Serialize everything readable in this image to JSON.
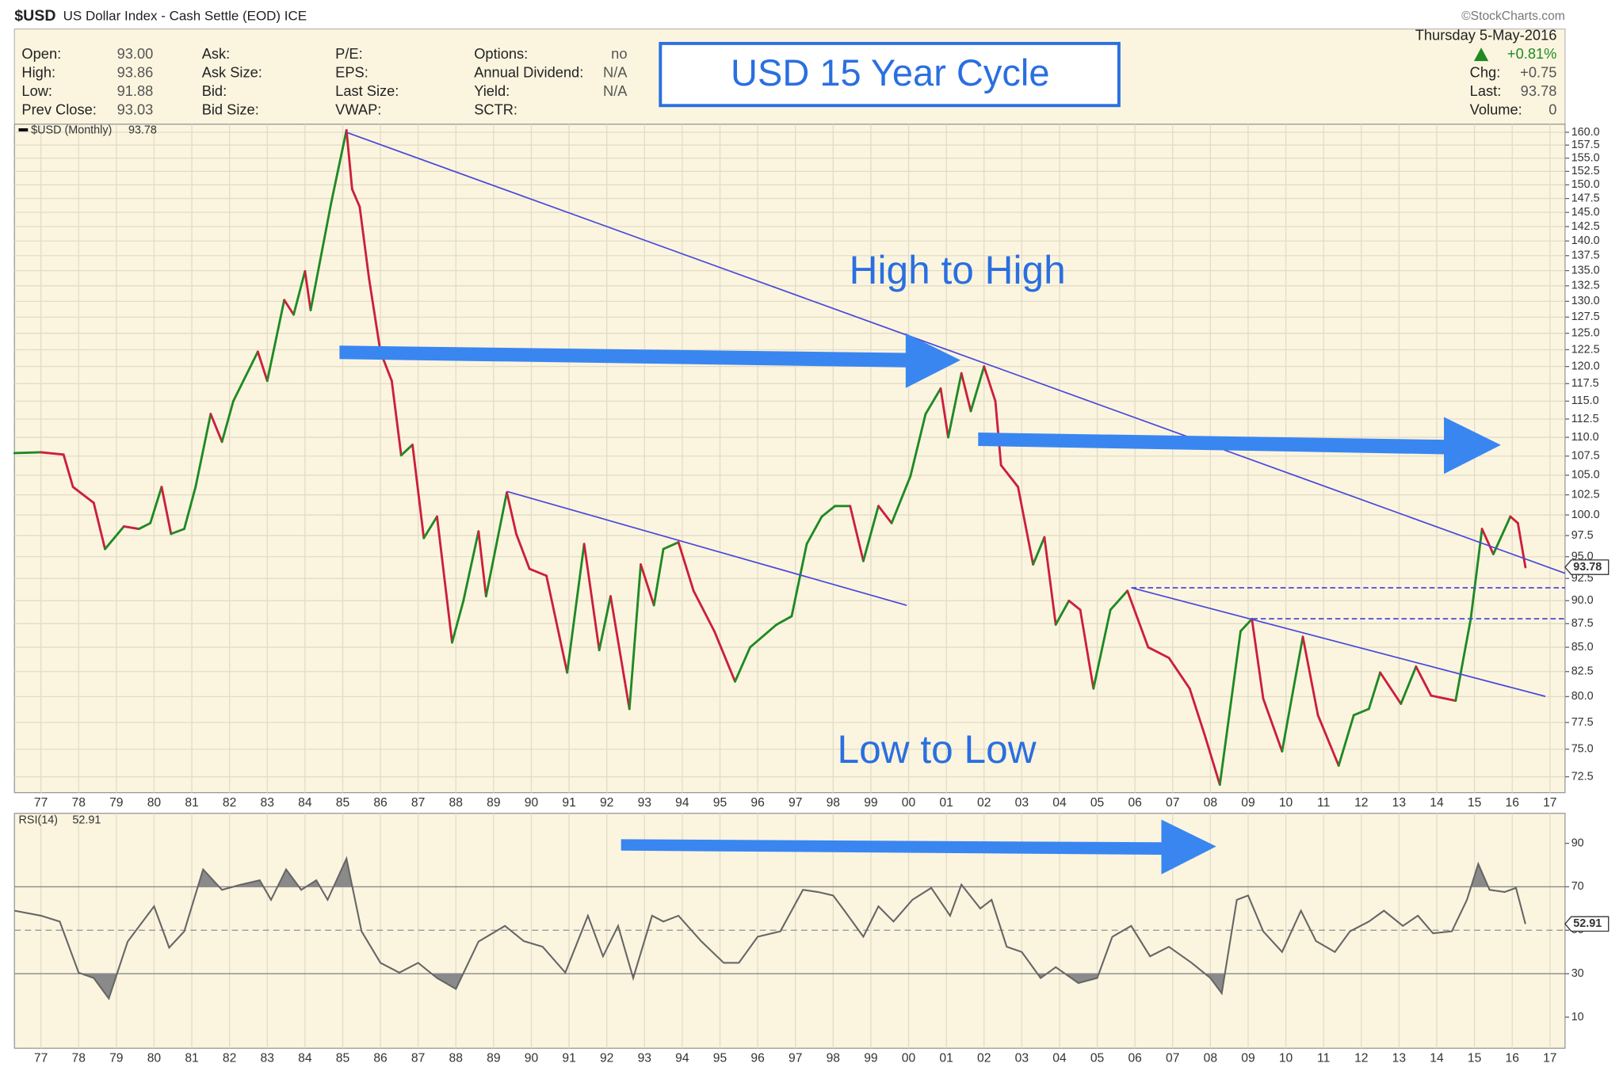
{
  "header": {
    "symbol": "$USD",
    "name": "US Dollar Index - Cash Settle (EOD) ICE",
    "credit": "©StockCharts.com",
    "quote": [
      [
        [
          "Open:",
          "93.00"
        ],
        [
          "High:",
          "93.86"
        ],
        [
          "Low:",
          "91.88"
        ],
        [
          "Prev Close:",
          "93.03"
        ]
      ],
      [
        [
          "Ask:"
        ],
        [
          "Ask Size:"
        ],
        [
          "Bid:"
        ],
        [
          "Bid Size:"
        ]
      ],
      [
        [
          "P/E:"
        ],
        [
          "EPS:"
        ],
        [
          "Last Size:"
        ],
        [
          "VWAP:"
        ]
      ],
      [
        [
          "Options:",
          "no"
        ],
        [
          "Annual Dividend:",
          "N/A"
        ],
        [
          "Yield:",
          "N/A"
        ],
        [
          "SCTR:"
        ]
      ]
    ],
    "date": "Thursday  5-May-2016",
    "change_pct": "+0.81%",
    "summary": [
      [
        "Chg:",
        "+0.75"
      ],
      [
        "Last:",
        "93.78"
      ],
      [
        "Volume:",
        "0"
      ]
    ]
  },
  "annotations": {
    "title": "USD 15 Year Cycle",
    "high": "High to High",
    "low": "Low to Low"
  },
  "chart_data": [
    {
      "type": "line",
      "log_scale": true,
      "grid": true,
      "up_color": "#1f8a23",
      "down_color": "#cc1f3c",
      "xlim": [
        1976.3,
        2017.4
      ],
      "ylim": [
        71.1,
        161.6
      ],
      "xticks": [
        {
          "value": 1977,
          "label": "77"
        },
        {
          "value": 1978,
          "label": "78"
        },
        {
          "value": 1979,
          "label": "79"
        },
        {
          "value": 1980,
          "label": "80"
        },
        {
          "value": 1981,
          "label": "81"
        },
        {
          "value": 1982,
          "label": "82"
        },
        {
          "value": 1983,
          "label": "83"
        },
        {
          "value": 1984,
          "label": "84"
        },
        {
          "value": 1985,
          "label": "85"
        },
        {
          "value": 1986,
          "label": "86"
        },
        {
          "value": 1987,
          "label": "87"
        },
        {
          "value": 1988,
          "label": "88"
        },
        {
          "value": 1989,
          "label": "89"
        },
        {
          "value": 1990,
          "label": "90"
        },
        {
          "value": 1991,
          "label": "91"
        },
        {
          "value": 1992,
          "label": "92"
        },
        {
          "value": 1993,
          "label": "93"
        },
        {
          "value": 1994,
          "label": "94"
        },
        {
          "value": 1995,
          "label": "95"
        },
        {
          "value": 1996,
          "label": "96"
        },
        {
          "value": 1997,
          "label": "97"
        },
        {
          "value": 1998,
          "label": "98"
        },
        {
          "value": 1999,
          "label": "99"
        },
        {
          "value": 2000,
          "label": "00"
        },
        {
          "value": 2001,
          "label": "01"
        },
        {
          "value": 2002,
          "label": "02"
        },
        {
          "value": 2003,
          "label": "03"
        },
        {
          "value": 2004,
          "label": "04"
        },
        {
          "value": 2005,
          "label": "05"
        },
        {
          "value": 2006,
          "label": "06"
        },
        {
          "value": 2007,
          "label": "07"
        },
        {
          "value": 2008,
          "label": "08"
        },
        {
          "value": 2009,
          "label": "09"
        },
        {
          "value": 2010,
          "label": "10"
        },
        {
          "value": 2011,
          "label": "11"
        },
        {
          "value": 2012,
          "label": "12"
        },
        {
          "value": 2013,
          "label": "13"
        },
        {
          "value": 2014,
          "label": "14"
        },
        {
          "value": 2015,
          "label": "15"
        },
        {
          "value": 2016,
          "label": "16"
        },
        {
          "value": 2017,
          "label": "17"
        }
      ],
      "yticks": [
        72.5,
        {
          "value": 75,
          "label": "75.0"
        },
        77.5,
        {
          "value": 80,
          "label": "80.0"
        },
        82.5,
        {
          "value": 85,
          "label": "85.0"
        },
        87.5,
        {
          "value": 90,
          "label": "90.0"
        },
        92.5,
        {
          "value": 95,
          "label": "95.0"
        },
        97.5,
        {
          "value": 100,
          "label": "100.0"
        },
        102.5,
        {
          "value": 105,
          "label": "105.0"
        },
        107.5,
        {
          "value": 110,
          "label": "110.0"
        },
        112.5,
        {
          "value": 115,
          "label": "115.0"
        },
        117.5,
        {
          "value": 120,
          "label": "120.0"
        },
        122.5,
        {
          "value": 125,
          "label": "125.0"
        },
        127.5,
        {
          "value": 130,
          "label": "130.0"
        },
        132.5,
        {
          "value": 135,
          "label": "135.0"
        },
        137.5,
        {
          "value": 140,
          "label": "140.0"
        },
        142.5,
        {
          "value": 145,
          "label": "145.0"
        },
        147.5,
        {
          "value": 150,
          "label": "150.0"
        },
        152.5,
        {
          "value": 155,
          "label": "155.0"
        },
        157.5,
        {
          "value": 160,
          "label": "160.0"
        }
      ],
      "x": [
        1976.3,
        1977.0,
        1977.6,
        1977.85,
        1978.4,
        1978.7,
        1979.2,
        1979.6,
        1979.9,
        1980.2,
        1980.45,
        1980.8,
        1981.1,
        1981.5,
        1981.8,
        1982.1,
        1982.75,
        1983.0,
        1983.45,
        1983.7,
        1984.0,
        1984.15,
        1984.7,
        1985.1,
        1985.25,
        1985.45,
        1985.7,
        1986.0,
        1986.3,
        1986.55,
        1986.85,
        1987.15,
        1987.5,
        1987.9,
        1988.2,
        1988.6,
        1988.8,
        1989.35,
        1989.6,
        1989.95,
        1990.4,
        1990.95,
        1991.4,
        1991.8,
        1992.1,
        1992.6,
        1992.9,
        1993.25,
        1993.5,
        1993.9,
        1994.3,
        1994.85,
        1995.4,
        1995.8,
        1996.5,
        1996.9,
        1997.3,
        1997.7,
        1998.05,
        1998.45,
        1998.8,
        1999.2,
        1999.55,
        2000.05,
        2000.45,
        2000.85,
        2001.05,
        2001.4,
        2001.65,
        2002.0,
        2002.3,
        2002.45,
        2002.9,
        2003.3,
        2003.6,
        2003.9,
        2004.25,
        2004.55,
        2004.9,
        2005.35,
        2005.8,
        2006.35,
        2006.9,
        2007.45,
        2007.85,
        2008.25,
        2008.8,
        2009.1,
        2009.4,
        2009.9,
        2010.45,
        2010.85,
        2011.4,
        2011.8,
        2012.2,
        2012.5,
        2013.05,
        2013.45,
        2013.85,
        2014.5,
        2014.9,
        2015.2,
        2015.5,
        2015.95,
        2016.15,
        2016.35
      ],
      "series": [
        {
          "name": "$USD (Monthly)",
          "values": [
            107.9,
            108.0,
            107.7,
            103.5,
            101.5,
            95.9,
            98.6,
            98.3,
            99.0,
            103.5,
            97.7,
            98.3,
            103.5,
            113.2,
            109.4,
            115.0,
            122.2,
            117.9,
            130.2,
            127.9,
            134.9,
            128.6,
            146.9,
            160.4,
            149.2,
            146.0,
            133.6,
            122.2,
            117.9,
            107.6,
            109.0,
            97.2,
            99.8,
            85.5,
            90.0,
            98.0,
            90.5,
            102.8,
            97.7,
            93.6,
            92.8,
            82.4,
            96.5,
            84.7,
            90.5,
            78.8,
            94.1,
            89.5,
            95.9,
            96.7,
            91.1,
            86.7,
            81.5,
            85.0,
            87.4,
            88.3,
            96.5,
            99.8,
            101.1,
            101.1,
            94.5,
            101.1,
            99.0,
            104.9,
            113.2,
            116.8,
            110.0,
            119.0,
            113.6,
            120.0,
            115.0,
            106.3,
            103.5,
            94.1,
            97.3,
            87.4,
            90.0,
            89.0,
            80.8,
            89.0,
            91.1,
            85.0,
            83.9,
            80.8,
            76.3,
            71.8,
            86.7,
            88.0,
            79.8,
            74.8,
            86.1,
            78.2,
            73.5,
            78.2,
            78.8,
            82.4,
            79.3,
            83.0,
            80.1,
            79.6,
            88.0,
            98.3,
            95.3,
            99.8,
            99.0,
            93.78
          ]
        }
      ]
    },
    {
      "type": "rsi",
      "color": "#666666",
      "fill": "#8a8a8a",
      "overbought": 70,
      "oversold": 30,
      "midline": 50,
      "xlim": [
        1976.3,
        2017.4
      ],
      "ylim": [
        -4.3,
        103.8
      ],
      "yticks": [
        10,
        30,
        50,
        70,
        90
      ],
      "x": [
        1976.3,
        1977.0,
        1977.5,
        1978.0,
        1978.4,
        1978.8,
        1979.3,
        1980.0,
        1980.4,
        1980.8,
        1981.3,
        1981.8,
        1982.3,
        1982.8,
        1983.1,
        1983.5,
        1983.9,
        1984.3,
        1984.6,
        1985.1,
        1985.5,
        1986.0,
        1986.5,
        1987.0,
        1987.5,
        1988.0,
        1988.6,
        1989.3,
        1989.8,
        1990.3,
        1990.9,
        1991.5,
        1991.9,
        1992.3,
        1992.7,
        1993.2,
        1993.5,
        1993.9,
        1994.5,
        1995.1,
        1995.5,
        1996.0,
        1996.6,
        1997.2,
        1997.6,
        1998.0,
        1998.3,
        1998.8,
        1999.2,
        1999.6,
        2000.1,
        2000.6,
        2001.1,
        2001.4,
        2001.9,
        2002.2,
        2002.6,
        2003.0,
        2003.5,
        2003.9,
        2004.5,
        2005.0,
        2005.4,
        2005.9,
        2006.4,
        2006.9,
        2007.5,
        2008.0,
        2008.3,
        2008.7,
        2009.0,
        2009.4,
        2009.9,
        2010.4,
        2010.8,
        2011.3,
        2011.7,
        2012.2,
        2012.6,
        2013.1,
        2013.5,
        2013.9,
        2014.4,
        2014.8,
        2015.1,
        2015.4,
        2015.8,
        2016.1,
        2016.35
      ],
      "series": [
        {
          "name": "RSI(14)",
          "values": [
            59,
            56.7,
            54,
            30.5,
            28,
            18.6,
            44.8,
            61,
            42,
            49.5,
            78,
            68.6,
            71,
            73,
            64,
            78,
            68.6,
            73,
            64,
            83,
            49.5,
            35,
            30.5,
            35,
            28,
            23,
            44.8,
            52,
            45,
            42.4,
            30.5,
            56.7,
            38,
            52,
            28,
            56.7,
            54,
            56.7,
            45,
            35,
            35,
            47,
            49.5,
            68.6,
            67.6,
            66,
            59,
            47,
            61,
            54,
            64,
            69.5,
            56.7,
            71,
            60,
            64,
            42.4,
            40,
            28,
            33,
            25.7,
            28,
            47,
            52,
            38,
            42.4,
            35,
            28,
            21,
            64,
            66,
            49.5,
            40,
            59,
            45,
            40,
            49.5,
            54,
            59,
            52,
            56.7,
            48.6,
            49.5,
            64,
            80.5,
            68.6,
            67.6,
            69.5,
            52.91
          ]
        }
      ]
    }
  ]
}
